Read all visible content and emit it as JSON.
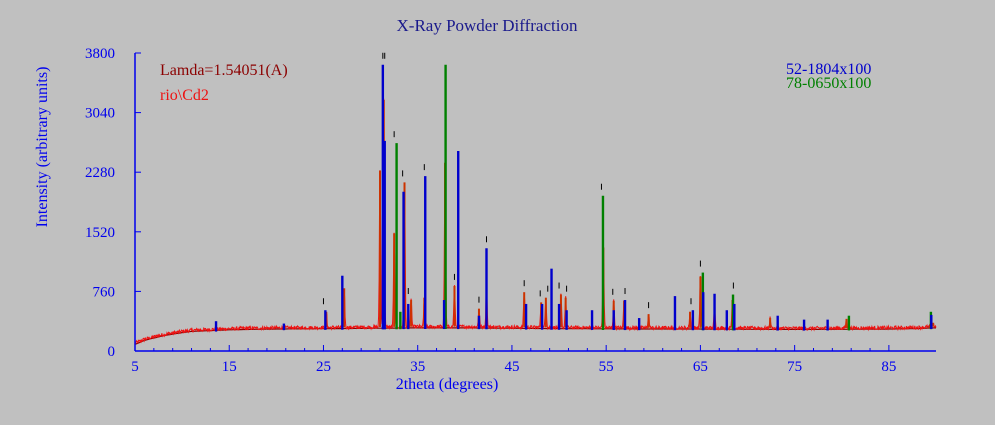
{
  "chart_data": {
    "type": "line",
    "title": "X-Ray Powder Diffraction",
    "xlabel": "2theta (degrees)",
    "ylabel": "Intensity (arbitrary units)",
    "xlim": [
      5,
      90
    ],
    "ylim": [
      0,
      3800
    ],
    "x_ticks": [
      5,
      15,
      25,
      35,
      45,
      55,
      65,
      75,
      85
    ],
    "x_tick_labels": [
      "5",
      "15",
      "25",
      "35",
      "45",
      "55",
      "65",
      "75",
      "85"
    ],
    "y_ticks": [
      0,
      760,
      1520,
      2280,
      3040,
      3800
    ],
    "y_tick_labels": [
      "0",
      "760",
      "1520",
      "2280",
      "3040",
      "3800"
    ],
    "annotations": {
      "wavelength": "Lamda=1.54051(A)",
      "sample": "rio\\Cd2"
    },
    "colors": {
      "title": "#1a1a8c",
      "axis": "#0000ee",
      "wavelength_text": "#8b0000",
      "sample_trace": "#ee1111",
      "reference_1": "#0000cc",
      "reference_2": "#008000",
      "observed_peaks": "#cc3300",
      "marker_ticks": "#000000",
      "background": "#c0c0c0"
    },
    "background_pattern": [
      [
        5,
        100
      ],
      [
        6,
        150
      ],
      [
        7,
        180
      ],
      [
        8,
        210
      ],
      [
        9,
        230
      ],
      [
        10,
        250
      ],
      [
        11,
        265
      ],
      [
        12,
        270
      ],
      [
        13,
        275
      ],
      [
        14,
        280
      ],
      [
        15,
        285
      ],
      [
        17,
        290
      ],
      [
        20,
        295
      ],
      [
        23,
        298
      ],
      [
        26,
        300
      ],
      [
        30,
        305
      ],
      [
        35,
        310
      ],
      [
        40,
        310
      ],
      [
        45,
        305
      ],
      [
        50,
        300
      ],
      [
        55,
        298
      ],
      [
        60,
        295
      ],
      [
        65,
        295
      ],
      [
        70,
        292
      ],
      [
        75,
        290
      ],
      [
        80,
        292
      ],
      [
        85,
        295
      ],
      [
        88,
        300
      ],
      [
        89.5,
        310
      ]
    ],
    "series": [
      {
        "name": "52-1804x100",
        "marks": "sticks",
        "color": "#0000cc",
        "x": [
          13.6,
          20.8,
          25.2,
          27.0,
          31.3,
          31.5,
          33.5,
          34.0,
          35.8,
          37.8,
          39.3,
          41.5,
          42.3,
          46.5,
          48.2,
          49.2,
          50.0,
          50.8,
          53.5,
          55.8,
          57.0,
          58.5,
          62.3,
          64.2,
          65.3,
          66.5,
          67.8,
          68.6,
          73.2,
          76.0,
          78.5,
          89.5
        ],
        "y": [
          380,
          350,
          520,
          960,
          3650,
          2680,
          2030,
          600,
          2230,
          650,
          2550,
          450,
          1310,
          600,
          600,
          1050,
          600,
          520,
          520,
          520,
          650,
          420,
          700,
          520,
          750,
          730,
          520,
          600,
          450,
          400,
          400,
          460
        ]
      },
      {
        "name": "78-0650x100",
        "marks": "sticks",
        "color": "#008000",
        "x": [
          32.6,
          33.0,
          37.8,
          54.5,
          65.1,
          68.3,
          80.6,
          89.3
        ],
        "y": [
          2650,
          500,
          3650,
          1980,
          1000,
          720,
          450,
          500
        ]
      },
      {
        "name": "rio\\Cd2",
        "marks": "peaks",
        "color": "#ee1111",
        "x": [
          25.3,
          27.2,
          31.0,
          31.4,
          32.5,
          33.6,
          34.3,
          35.7,
          37.9,
          38.9,
          41.5,
          42.3,
          46.3,
          48.1,
          48.6,
          50.2,
          50.7,
          54.7,
          55.8,
          56.9,
          59.5,
          63.9,
          65.0,
          66.5,
          68.4,
          72.4,
          80.5,
          89.7
        ],
        "y": [
          500,
          800,
          2300,
          3200,
          1500,
          2150,
          650,
          680,
          2400,
          830,
          540,
          810,
          750,
          620,
          680,
          720,
          680,
          1320,
          640,
          640,
          470,
          500,
          950,
          560,
          650,
          420,
          410,
          360
        ]
      }
    ],
    "peak_markers_x": [
      25.0,
      31.3,
      31.5,
      32.5,
      33.4,
      34.0,
      35.7,
      38.9,
      41.5,
      42.3,
      46.3,
      48.0,
      48.8,
      50.0,
      50.8,
      54.5,
      55.7,
      57.0,
      59.5,
      64.0,
      65.0,
      68.5
    ]
  }
}
